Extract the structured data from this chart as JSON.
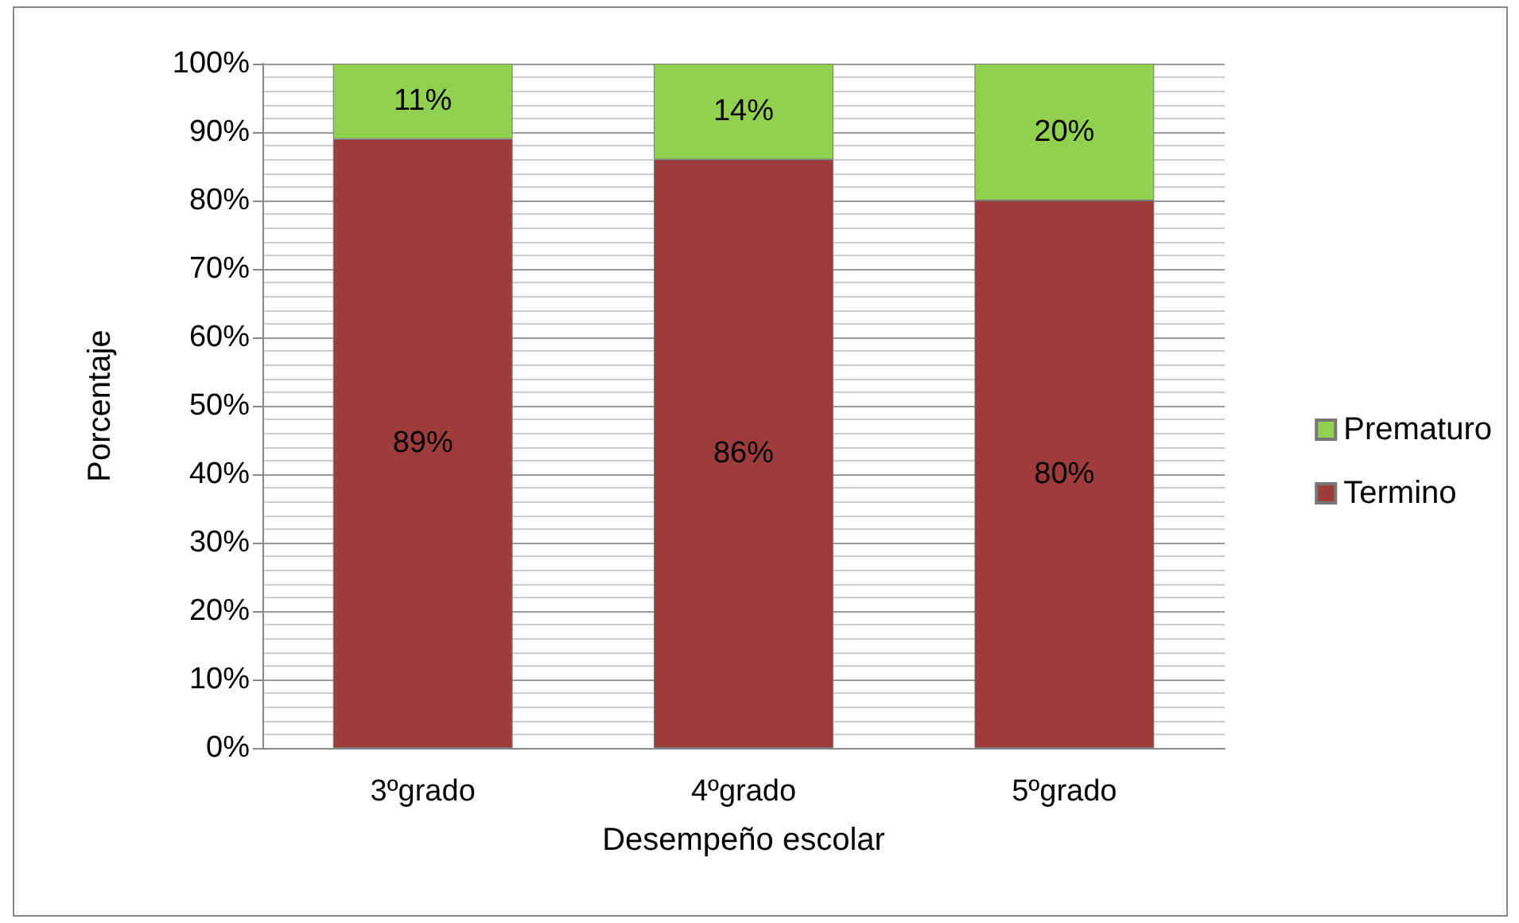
{
  "chart_data": {
    "type": "bar",
    "stacked": true,
    "xlabel": "Desempeño escolar",
    "ylabel": "Porcentaje",
    "categories": [
      "3ºgrado",
      "4ºgrado",
      "5ºgrado"
    ],
    "series": [
      {
        "name": "Termino",
        "color": "#9e3b3b",
        "values": [
          89,
          86,
          80
        ],
        "value_labels": [
          "89%",
          "86%",
          "80%"
        ]
      },
      {
        "name": "Prematuro",
        "color": "#92d050",
        "values": [
          11,
          14,
          20
        ],
        "value_labels": [
          "11%",
          "14%",
          "20%"
        ]
      }
    ],
    "ylim": [
      0,
      100
    ],
    "yticks": [
      {
        "value": 0,
        "label": "0%"
      },
      {
        "value": 10,
        "label": "10%"
      },
      {
        "value": 20,
        "label": "20%"
      },
      {
        "value": 30,
        "label": "30%"
      },
      {
        "value": 40,
        "label": "40%"
      },
      {
        "value": 50,
        "label": "50%"
      },
      {
        "value": 60,
        "label": "60%"
      },
      {
        "value": 70,
        "label": "70%"
      },
      {
        "value": 80,
        "label": "80%"
      },
      {
        "value": 90,
        "label": "90%"
      },
      {
        "value": 100,
        "label": "100%"
      }
    ],
    "grid": "y",
    "legend": "right"
  }
}
